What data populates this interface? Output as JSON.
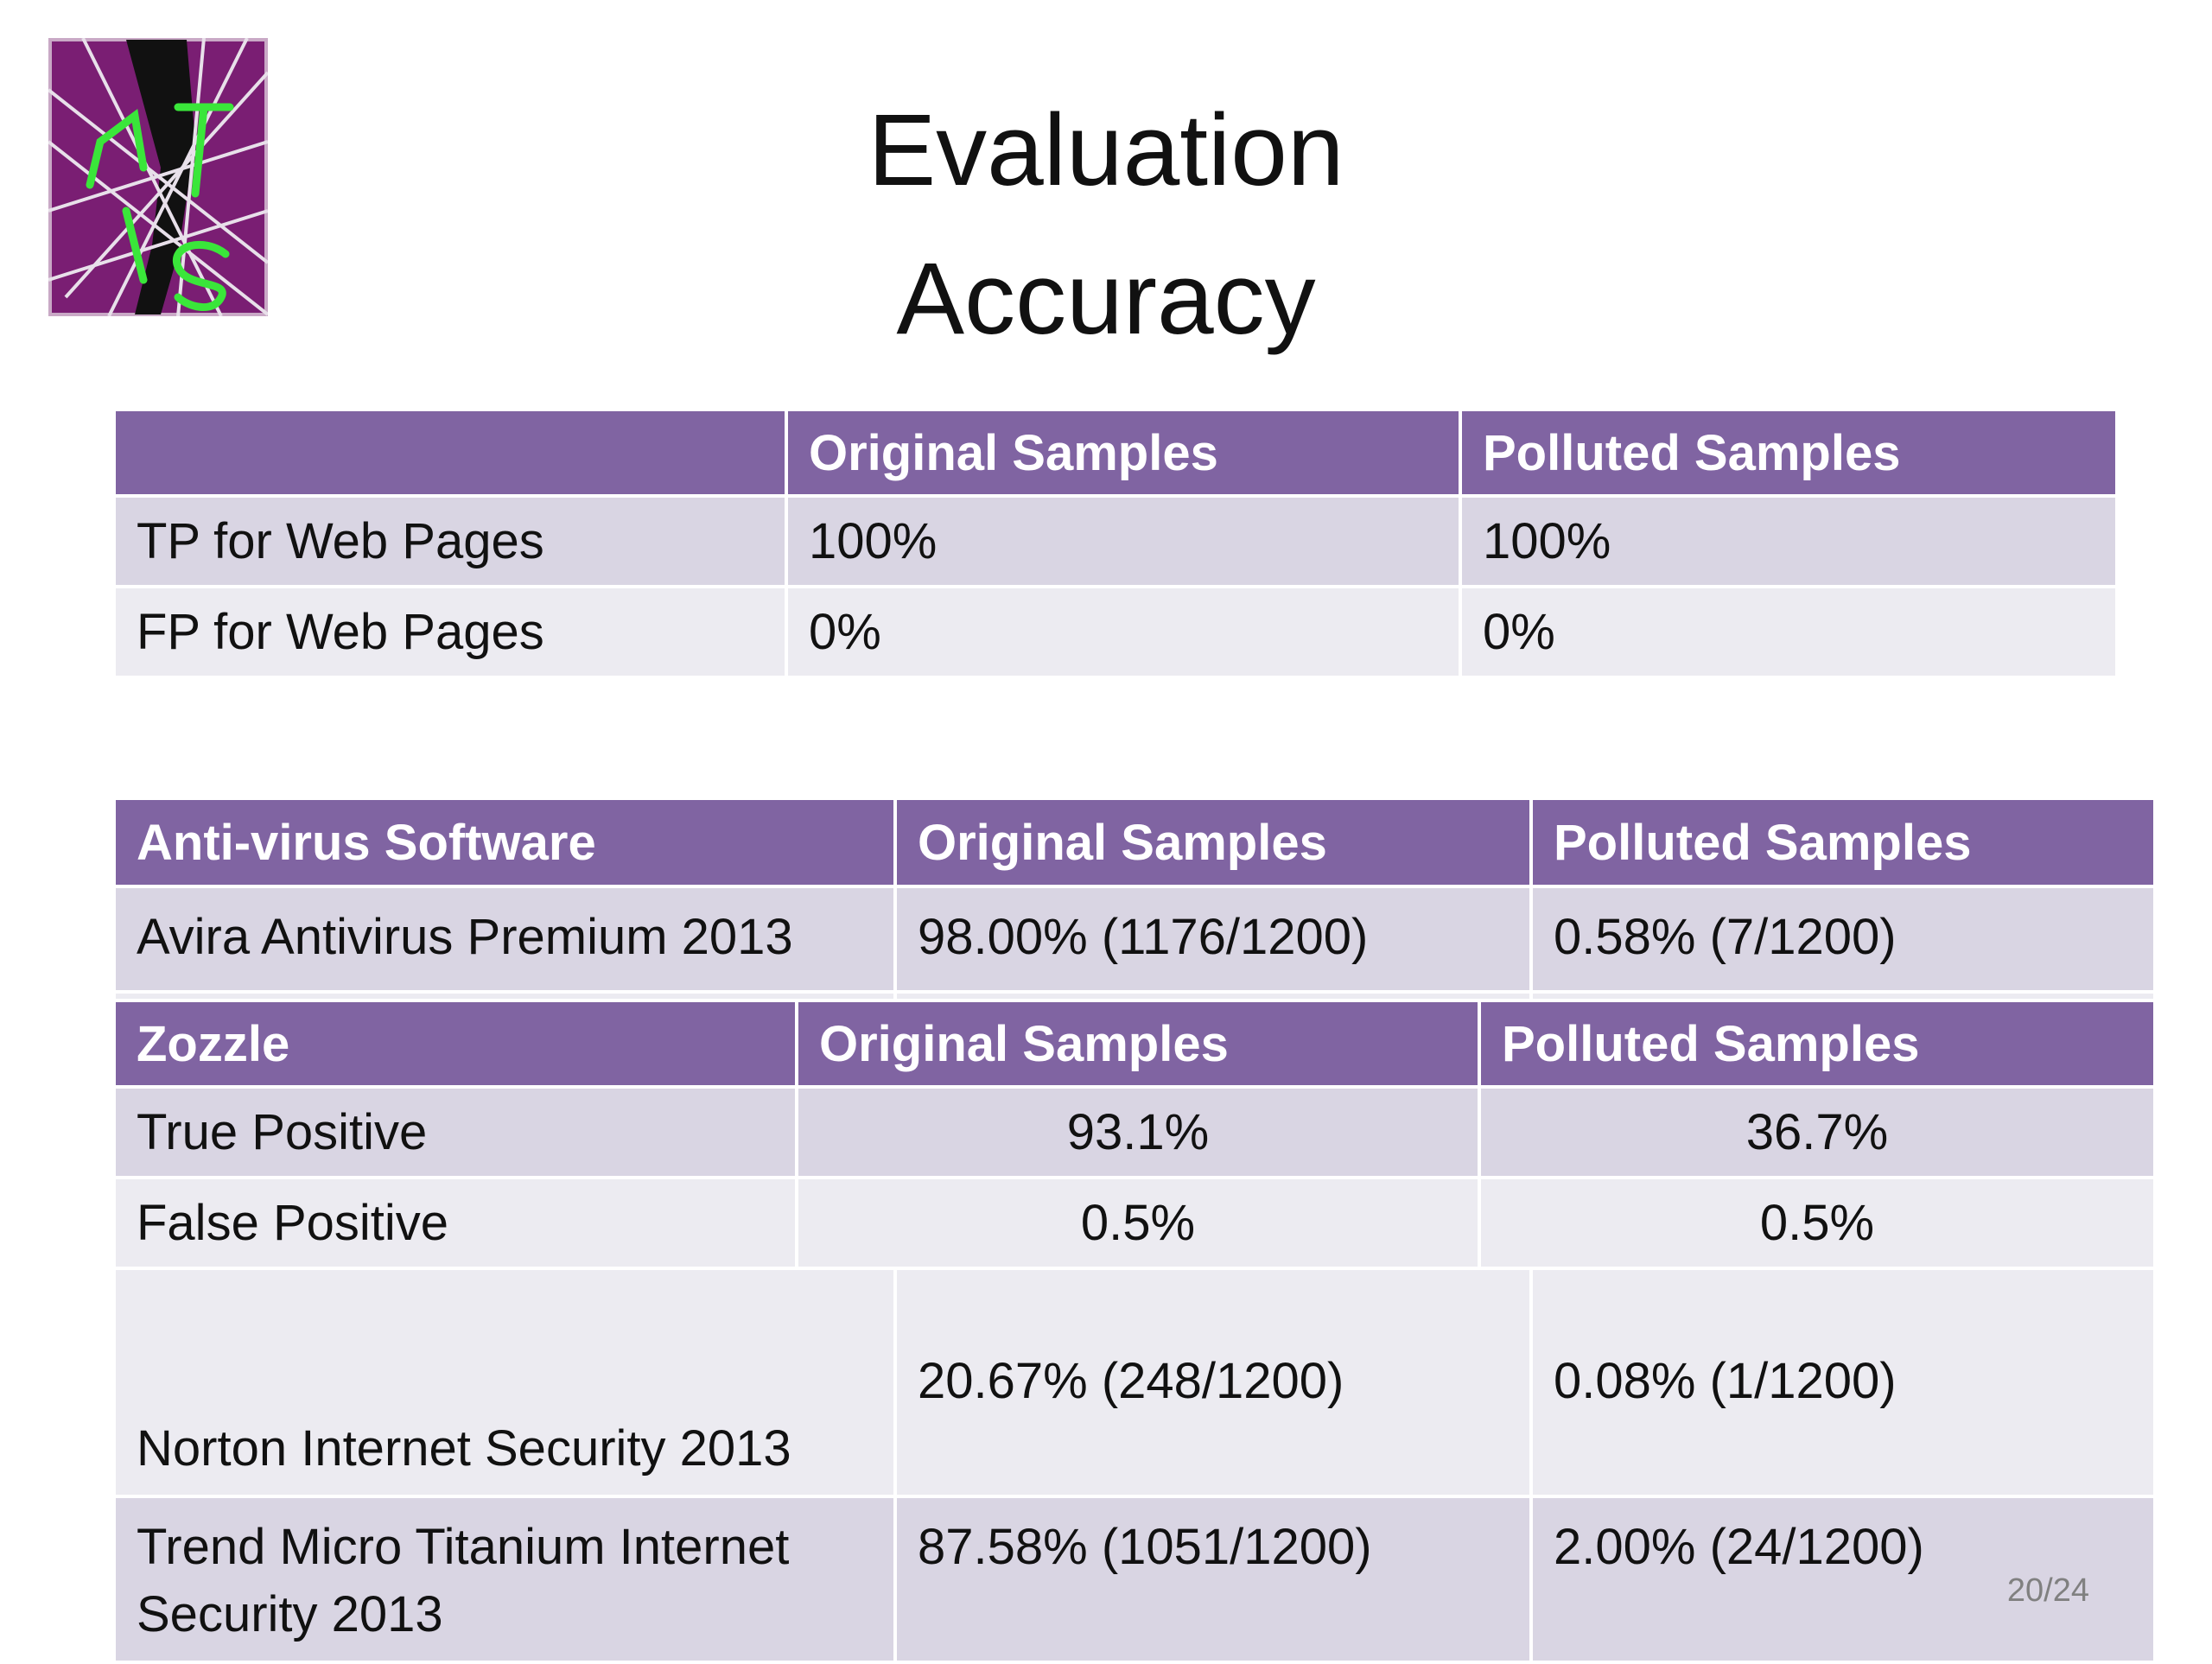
{
  "title": {
    "line1": "Evaluation",
    "line2": "Accuracy"
  },
  "web_table": {
    "headers": [
      "",
      "Original Samples",
      "Polluted Samples"
    ],
    "rows": [
      [
        "TP for Web Pages",
        "100%",
        "100%"
      ],
      [
        "FP for Web Pages",
        "0%",
        "0%"
      ]
    ]
  },
  "av_table": {
    "headers": [
      "Anti-virus Software",
      "Original Samples",
      "Polluted Samples"
    ],
    "rows": [
      [
        "Avira Antivirus Premium 2013",
        "98.00% (1176/1200)",
        "0.58% (7/1200)"
      ],
      [
        "Norton Internet Security 2013",
        "20.67% (248/1200)",
        "0.08% (1/1200)"
      ],
      [
        "Trend Micro Titanium Internet Security 2013",
        "87.58% (1051/1200)",
        "2.00% (24/1200)"
      ]
    ]
  },
  "zozzle_table": {
    "headers": [
      "Zozzle",
      "Original Samples",
      "Polluted Samples"
    ],
    "rows": [
      [
        "True Positive",
        "93.1%",
        "36.7%"
      ],
      [
        "False Positive",
        "0.5%",
        "0.5%"
      ]
    ]
  },
  "page_number": "20/24",
  "colors": {
    "header": "#8064a2",
    "row_dark": "#d9d5e3",
    "row_light": "#ecebf1",
    "logo_bg": "#7a1e73",
    "logo_lines": "#3ae63a"
  }
}
